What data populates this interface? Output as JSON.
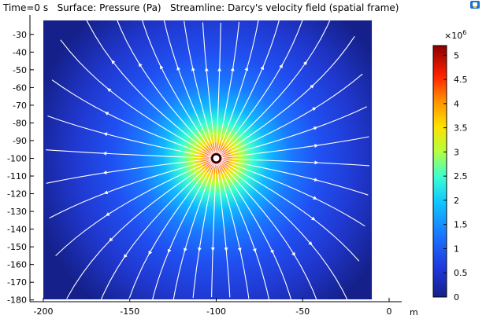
{
  "title_line": "Time=0 s   Surface: Pressure (Pa)   Streamline: Darcy's velocity field (spatial frame)",
  "icons": {
    "corner": "coordinate-system-icon"
  },
  "chart_data": {
    "type": "heatmap",
    "title": "Time=0 s   Surface: Pressure (Pa)   Streamline: Darcy's velocity field (spatial frame)",
    "xlabel": "m",
    "ylabel": "",
    "xlim": [
      -200,
      0
    ],
    "ylim": [
      -181,
      -19
    ],
    "x_ticks": [
      -200,
      -150,
      -100,
      -50,
      0
    ],
    "y_ticks": [
      -30,
      -40,
      -50,
      -60,
      -70,
      -80,
      -90,
      -100,
      -110,
      -120,
      -130,
      -140,
      -150,
      -160,
      -170,
      -180
    ],
    "domain_x": [
      -200,
      -10
    ],
    "source": {
      "x": -100,
      "y": -100
    },
    "field": "Pressure (Pa)",
    "colorbar": {
      "multiplier": "×10",
      "exponent": "6",
      "min": 0,
      "max": 5.2,
      "ticks": [
        "5",
        "4.5",
        "4",
        "3.5",
        "3",
        "2.5",
        "2",
        "1.5",
        "1",
        "0.5",
        "0"
      ],
      "tick_values": [
        5,
        4.5,
        4,
        3.5,
        3,
        2.5,
        2,
        1.5,
        1,
        0.5,
        0
      ]
    },
    "colormap": "rainbow",
    "streamlines": "radial outward from source",
    "grid": false
  }
}
